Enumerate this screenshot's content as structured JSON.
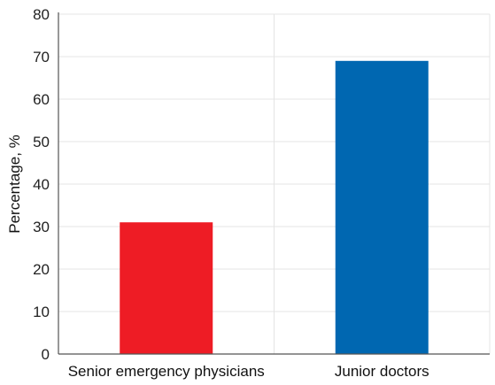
{
  "chart_data": {
    "type": "bar",
    "categories": [
      "Senior emergency physicians",
      "Junior doctors"
    ],
    "values": [
      31,
      69
    ],
    "title": "",
    "xlabel": "",
    "ylabel": "Percentage, %",
    "ylim": [
      0,
      80
    ],
    "yticks": [
      "0",
      "10",
      "20",
      "30",
      "40",
      "50",
      "60",
      "70",
      "80"
    ],
    "colors": [
      "#ee1c25",
      "#0067b1"
    ],
    "grid": true
  }
}
